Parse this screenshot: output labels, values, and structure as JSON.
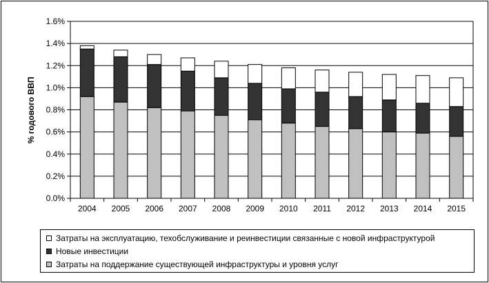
{
  "chart_data": {
    "type": "bar",
    "stacked": true,
    "title": "",
    "xlabel": "",
    "ylabel": "% годового ВВП",
    "ylim": [
      0,
      1.6
    ],
    "yticks": [
      "0.0%",
      "0.2%",
      "0.4%",
      "0.6%",
      "0.8%",
      "1.0%",
      "1.2%",
      "1.4%",
      "1.6%"
    ],
    "ytick_values": [
      0,
      0.2,
      0.4,
      0.6,
      0.8,
      1.0,
      1.2,
      1.4,
      1.6
    ],
    "grid": true,
    "legend_position": "bottom",
    "categories": [
      "2004",
      "2005",
      "2006",
      "2007",
      "2008",
      "2009",
      "2010",
      "2011",
      "2012",
      "2013",
      "2014",
      "2015"
    ],
    "series": [
      {
        "name": "Затраты на поддержание существующей инфраструктуры и уровня услуг",
        "color": "#c0c0c0",
        "values": [
          0.92,
          0.87,
          0.82,
          0.79,
          0.75,
          0.71,
          0.68,
          0.65,
          0.63,
          0.6,
          0.59,
          0.56
        ]
      },
      {
        "name": "Новые инвестиции",
        "color": "#333333",
        "values": [
          0.43,
          0.41,
          0.39,
          0.36,
          0.34,
          0.33,
          0.31,
          0.31,
          0.29,
          0.29,
          0.27,
          0.27
        ]
      },
      {
        "name": "Затраты на эксплуатацию, техобслуживание и реинвестиции связанные с новой инфраструктурой",
        "color": "#ffffff",
        "values": [
          0.03,
          0.06,
          0.09,
          0.12,
          0.15,
          0.17,
          0.19,
          0.2,
          0.22,
          0.23,
          0.25,
          0.26
        ]
      }
    ]
  }
}
